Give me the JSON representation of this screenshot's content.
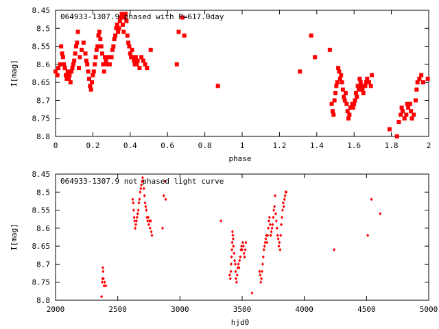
{
  "chart_data": [
    {
      "type": "scatter",
      "title": "064933-1307.9 phased with P=617.0day",
      "xlabel": "phase",
      "ylabel": "I[mag]",
      "xlim": [
        0,
        2
      ],
      "ylim": [
        8.8,
        8.45
      ],
      "y_inverted": true,
      "xticks": [
        "0",
        "0.2",
        "0.4",
        "0.6",
        "0.8",
        "1",
        "1.2",
        "1.4",
        "1.6",
        "1.8",
        "2"
      ],
      "yticks": [
        "8.45",
        "8.5",
        "8.55",
        "8.6",
        "8.65",
        "8.7",
        "8.75",
        "8.8"
      ],
      "marker_color": "#ff0000",
      "grid": false,
      "points": [
        [
          0.0,
          8.62
        ],
        [
          0.01,
          8.63
        ],
        [
          0.015,
          8.61
        ],
        [
          0.025,
          8.6
        ],
        [
          0.03,
          8.55
        ],
        [
          0.035,
          8.57
        ],
        [
          0.04,
          8.58
        ],
        [
          0.045,
          8.6
        ],
        [
          0.05,
          8.61
        ],
        [
          0.055,
          8.63
        ],
        [
          0.06,
          8.64
        ],
        [
          0.065,
          8.62
        ],
        [
          0.07,
          8.64
        ],
        [
          0.075,
          8.63
        ],
        [
          0.08,
          8.65
        ],
        [
          0.085,
          8.62
        ],
        [
          0.09,
          8.61
        ],
        [
          0.095,
          8.6
        ],
        [
          0.1,
          8.59
        ],
        [
          0.105,
          8.57
        ],
        [
          0.11,
          8.55
        ],
        [
          0.115,
          8.54
        ],
        [
          0.12,
          8.51
        ],
        [
          0.125,
          8.61
        ],
        [
          0.13,
          8.58
        ],
        [
          0.14,
          8.56
        ],
        [
          0.15,
          8.54
        ],
        [
          0.16,
          8.57
        ],
        [
          0.165,
          8.59
        ],
        [
          0.17,
          8.6
        ],
        [
          0.175,
          8.62
        ],
        [
          0.18,
          8.64
        ],
        [
          0.185,
          8.66
        ],
        [
          0.19,
          8.67
        ],
        [
          0.195,
          8.65
        ],
        [
          0.2,
          8.63
        ],
        [
          0.205,
          8.62
        ],
        [
          0.21,
          8.6
        ],
        [
          0.215,
          8.58
        ],
        [
          0.22,
          8.56
        ],
        [
          0.225,
          8.55
        ],
        [
          0.23,
          8.52
        ],
        [
          0.235,
          8.51
        ],
        [
          0.24,
          8.53
        ],
        [
          0.245,
          8.55
        ],
        [
          0.25,
          8.57
        ],
        [
          0.255,
          8.6
        ],
        [
          0.26,
          8.62
        ],
        [
          0.265,
          8.58
        ],
        [
          0.27,
          8.59
        ],
        [
          0.275,
          8.6
        ],
        [
          0.28,
          8.58
        ],
        [
          0.29,
          8.6
        ],
        [
          0.3,
          8.58
        ],
        [
          0.305,
          8.56
        ],
        [
          0.31,
          8.55
        ],
        [
          0.315,
          8.53
        ],
        [
          0.32,
          8.52
        ],
        [
          0.325,
          8.5
        ],
        [
          0.33,
          8.49
        ],
        [
          0.335,
          8.51
        ],
        [
          0.34,
          8.5
        ],
        [
          0.345,
          8.48
        ],
        [
          0.35,
          8.47
        ],
        [
          0.355,
          8.46
        ],
        [
          0.36,
          8.49
        ],
        [
          0.365,
          8.51
        ],
        [
          0.37,
          8.47
        ],
        [
          0.375,
          8.46
        ],
        [
          0.38,
          8.48
        ],
        [
          0.385,
          8.52
        ],
        [
          0.39,
          8.54
        ],
        [
          0.395,
          8.55
        ],
        [
          0.4,
          8.57
        ],
        [
          0.405,
          8.58
        ],
        [
          0.41,
          8.56
        ],
        [
          0.415,
          8.58
        ],
        [
          0.42,
          8.59
        ],
        [
          0.425,
          8.6
        ],
        [
          0.43,
          8.58
        ],
        [
          0.435,
          8.6
        ],
        [
          0.44,
          8.59
        ],
        [
          0.45,
          8.61
        ],
        [
          0.46,
          8.58
        ],
        [
          0.47,
          8.59
        ],
        [
          0.48,
          8.6
        ],
        [
          0.49,
          8.61
        ],
        [
          0.51,
          8.56
        ],
        [
          0.65,
          8.6
        ],
        [
          0.66,
          8.51
        ],
        [
          0.68,
          8.47
        ],
        [
          0.69,
          8.52
        ],
        [
          0.87,
          8.66
        ],
        [
          1.31,
          8.62
        ],
        [
          1.37,
          8.52
        ],
        [
          1.39,
          8.58
        ],
        [
          1.47,
          8.56
        ],
        [
          1.48,
          8.71
        ],
        [
          1.485,
          8.73
        ],
        [
          1.49,
          8.74
        ],
        [
          1.495,
          8.7
        ],
        [
          1.5,
          8.68
        ],
        [
          1.505,
          8.66
        ],
        [
          1.51,
          8.65
        ],
        [
          1.515,
          8.61
        ],
        [
          1.52,
          8.62
        ],
        [
          1.525,
          8.64
        ],
        [
          1.53,
          8.63
        ],
        [
          1.535,
          8.65
        ],
        [
          1.54,
          8.67
        ],
        [
          1.545,
          8.69
        ],
        [
          1.55,
          8.7
        ],
        [
          1.555,
          8.68
        ],
        [
          1.56,
          8.71
        ],
        [
          1.565,
          8.73
        ],
        [
          1.57,
          8.75
        ],
        [
          1.575,
          8.74
        ],
        [
          1.58,
          8.72
        ],
        [
          1.59,
          8.71
        ],
        [
          1.595,
          8.72
        ],
        [
          1.6,
          8.71
        ],
        [
          1.605,
          8.7
        ],
        [
          1.61,
          8.68
        ],
        [
          1.615,
          8.69
        ],
        [
          1.62,
          8.66
        ],
        [
          1.625,
          8.67
        ],
        [
          1.63,
          8.64
        ],
        [
          1.635,
          8.65
        ],
        [
          1.64,
          8.66
        ],
        [
          1.645,
          8.67
        ],
        [
          1.65,
          8.68
        ],
        [
          1.66,
          8.66
        ],
        [
          1.665,
          8.65
        ],
        [
          1.67,
          8.64
        ],
        [
          1.68,
          8.65
        ],
        [
          1.69,
          8.66
        ],
        [
          1.695,
          8.63
        ],
        [
          1.79,
          8.78
        ],
        [
          1.83,
          8.8
        ],
        [
          1.84,
          8.76
        ],
        [
          1.85,
          8.74
        ],
        [
          1.855,
          8.72
        ],
        [
          1.86,
          8.73
        ],
        [
          1.87,
          8.75
        ],
        [
          1.88,
          8.74
        ],
        [
          1.885,
          8.71
        ],
        [
          1.89,
          8.72
        ],
        [
          1.9,
          8.71
        ],
        [
          1.905,
          8.73
        ],
        [
          1.91,
          8.75
        ],
        [
          1.92,
          8.74
        ],
        [
          1.93,
          8.7
        ],
        [
          1.935,
          8.67
        ],
        [
          1.94,
          8.65
        ],
        [
          1.95,
          8.64
        ],
        [
          1.96,
          8.63
        ],
        [
          1.97,
          8.65
        ],
        [
          1.995,
          8.64
        ]
      ]
    },
    {
      "type": "scatter",
      "title": "064933-1307.9 not phased light curve",
      "xlabel": "hjd0",
      "ylabel": "I[mag]",
      "xlim": [
        2000,
        5000
      ],
      "ylim": [
        8.8,
        8.45
      ],
      "y_inverted": true,
      "xticks": [
        "2000",
        "2500",
        "3000",
        "3500",
        "4000",
        "4500",
        "5000"
      ],
      "yticks": [
        "8.45",
        "8.5",
        "8.55",
        "8.6",
        "8.65",
        "8.7",
        "8.75",
        "8.8"
      ],
      "marker_color": "#ff0000",
      "grid": false,
      "points": [
        [
          2370,
          8.79
        ],
        [
          2375,
          8.75
        ],
        [
          2378,
          8.74
        ],
        [
          2380,
          8.71
        ],
        [
          2382,
          8.72
        ],
        [
          2385,
          8.74
        ],
        [
          2390,
          8.76
        ],
        [
          2395,
          8.75
        ],
        [
          2405,
          8.76
        ],
        [
          2620,
          8.52
        ],
        [
          2625,
          8.53
        ],
        [
          2628,
          8.55
        ],
        [
          2632,
          8.57
        ],
        [
          2636,
          8.58
        ],
        [
          2640,
          8.6
        ],
        [
          2645,
          8.59
        ],
        [
          2650,
          8.58
        ],
        [
          2655,
          8.57
        ],
        [
          2660,
          8.56
        ],
        [
          2665,
          8.55
        ],
        [
          2670,
          8.53
        ],
        [
          2675,
          8.52
        ],
        [
          2680,
          8.5
        ],
        [
          2685,
          8.49
        ],
        [
          2690,
          8.48
        ],
        [
          2695,
          8.47
        ],
        [
          2700,
          8.46
        ],
        [
          2705,
          8.47
        ],
        [
          2710,
          8.49
        ],
        [
          2715,
          8.51
        ],
        [
          2720,
          8.53
        ],
        [
          2725,
          8.54
        ],
        [
          2730,
          8.55
        ],
        [
          2735,
          8.57
        ],
        [
          2740,
          8.58
        ],
        [
          2745,
          8.57
        ],
        [
          2750,
          8.59
        ],
        [
          2755,
          8.58
        ],
        [
          2760,
          8.6
        ],
        [
          2765,
          8.58
        ],
        [
          2770,
          8.61
        ],
        [
          2775,
          8.62
        ],
        [
          2860,
          8.6
        ],
        [
          2870,
          8.51
        ],
        [
          2880,
          8.47
        ],
        [
          2885,
          8.52
        ],
        [
          3330,
          8.58
        ],
        [
          3400,
          8.73
        ],
        [
          3405,
          8.74
        ],
        [
          3410,
          8.72
        ],
        [
          3412,
          8.7
        ],
        [
          3415,
          8.68
        ],
        [
          3418,
          8.66
        ],
        [
          3420,
          8.64
        ],
        [
          3422,
          8.61
        ],
        [
          3425,
          8.62
        ],
        [
          3428,
          8.63
        ],
        [
          3430,
          8.65
        ],
        [
          3435,
          8.67
        ],
        [
          3440,
          8.69
        ],
        [
          3445,
          8.7
        ],
        [
          3448,
          8.72
        ],
        [
          3450,
          8.74
        ],
        [
          3455,
          8.75
        ],
        [
          3460,
          8.73
        ],
        [
          3465,
          8.71
        ],
        [
          3470,
          8.7
        ],
        [
          3475,
          8.71
        ],
        [
          3480,
          8.69
        ],
        [
          3485,
          8.68
        ],
        [
          3490,
          8.66
        ],
        [
          3495,
          8.65
        ],
        [
          3500,
          8.66
        ],
        [
          3505,
          8.64
        ],
        [
          3510,
          8.65
        ],
        [
          3515,
          8.67
        ],
        [
          3520,
          8.68
        ],
        [
          3525,
          8.66
        ],
        [
          3530,
          8.64
        ],
        [
          3580,
          8.78
        ],
        [
          3640,
          8.72
        ],
        [
          3645,
          8.73
        ],
        [
          3650,
          8.75
        ],
        [
          3655,
          8.74
        ],
        [
          3660,
          8.72
        ],
        [
          3665,
          8.7
        ],
        [
          3670,
          8.68
        ],
        [
          3675,
          8.66
        ],
        [
          3680,
          8.65
        ],
        [
          3685,
          8.64
        ],
        [
          3690,
          8.63
        ],
        [
          3695,
          8.62
        ],
        [
          3700,
          8.64
        ],
        [
          3705,
          8.62
        ],
        [
          3710,
          8.6
        ],
        [
          3715,
          8.58
        ],
        [
          3720,
          8.57
        ],
        [
          3725,
          8.59
        ],
        [
          3730,
          8.62
        ],
        [
          3735,
          8.61
        ],
        [
          3740,
          8.6
        ],
        [
          3745,
          8.59
        ],
        [
          3750,
          8.57
        ],
        [
          3755,
          8.55
        ],
        [
          3760,
          8.54
        ],
        [
          3765,
          8.51
        ],
        [
          3770,
          8.56
        ],
        [
          3775,
          8.58
        ],
        [
          3780,
          8.6
        ],
        [
          3785,
          8.62
        ],
        [
          3790,
          8.63
        ],
        [
          3795,
          8.65
        ],
        [
          3800,
          8.64
        ],
        [
          3805,
          8.66
        ],
        [
          3810,
          8.62
        ],
        [
          3815,
          8.59
        ],
        [
          3820,
          8.57
        ],
        [
          3825,
          8.55
        ],
        [
          3830,
          8.53
        ],
        [
          3835,
          8.54
        ],
        [
          3840,
          8.52
        ],
        [
          3845,
          8.51
        ],
        [
          3850,
          8.5
        ],
        [
          3855,
          8.5
        ],
        [
          4240,
          8.66
        ],
        [
          4510,
          8.62
        ],
        [
          4540,
          8.52
        ],
        [
          4610,
          8.56
        ]
      ]
    }
  ]
}
